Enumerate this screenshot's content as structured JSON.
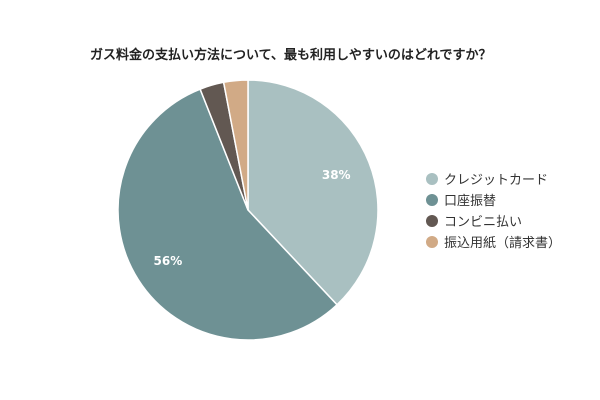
{
  "chart_data": {
    "type": "pie",
    "title": "ガス料金の支払い方法について、最も利用しやすいのはどれですか？",
    "categories": [
      "クレジットカード",
      "口座振替",
      "コンビニ払い",
      "振込用紙（請求書）"
    ],
    "values": [
      38,
      56,
      3,
      3
    ],
    "value_labels": [
      "38%",
      "56%",
      "",
      ""
    ],
    "colors": [
      "#a9c0c1",
      "#6e9194",
      "#625852",
      "#d1aa86"
    ],
    "legend_position": "right",
    "start_angle": "top",
    "direction": "clockwise"
  }
}
